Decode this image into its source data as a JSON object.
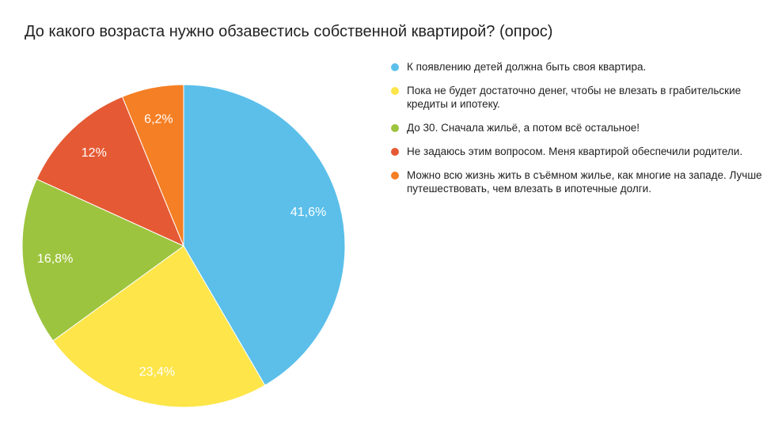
{
  "chart_data": {
    "type": "pie",
    "title": "До какого возраста нужно обзавестись собственной квартирой? (опрос)",
    "legend_position": "right",
    "slices": [
      {
        "label": "К появлению детей должна быть своя квартира.",
        "value": 41.6,
        "value_label": "41,6%",
        "color": "#5bbfea"
      },
      {
        "label": "Пока не будет достаточно денег, чтобы не влезать в грабительские кредиты и ипотеку.",
        "value": 23.4,
        "value_label": "23,4%",
        "color": "#fde54a"
      },
      {
        "label": "До 30. Сначала жильё, а потом всё остальное!",
        "value": 16.8,
        "value_label": "16,8%",
        "color": "#9dc43e"
      },
      {
        "label": "Не задаюсь этим вопросом. Меня квартирой обеспечили родители.",
        "value": 12.0,
        "value_label": "12%",
        "color": "#e55a34"
      },
      {
        "label": "Можно всю жизнь жить в съёмном жилье, как многие на западе. Лучше путешествовать, чем влезать в ипотечные долги.",
        "value": 6.2,
        "value_label": "6,2%",
        "color": "#f57f24"
      }
    ]
  }
}
